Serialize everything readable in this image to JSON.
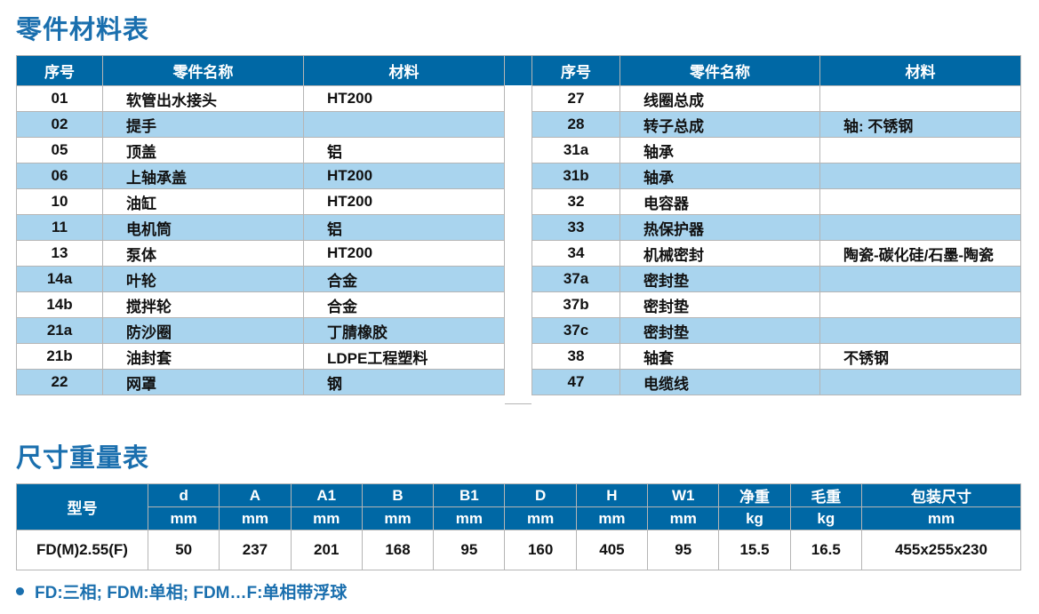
{
  "parts_title": "零件材料表",
  "parts_headers": [
    "序号",
    "零件名称",
    "材料"
  ],
  "parts_left": [
    [
      "01",
      "软管出水接头",
      "HT200"
    ],
    [
      "02",
      "提手",
      ""
    ],
    [
      "05",
      "顶盖",
      "铝"
    ],
    [
      "06",
      "上轴承盖",
      "HT200"
    ],
    [
      "10",
      "油缸",
      "HT200"
    ],
    [
      "11",
      "电机筒",
      "铝"
    ],
    [
      "13",
      "泵体",
      "HT200"
    ],
    [
      "14a",
      "叶轮",
      "合金"
    ],
    [
      "14b",
      "搅拌轮",
      "合金"
    ],
    [
      "21a",
      "防沙圈",
      "丁腈橡胶"
    ],
    [
      "21b",
      "油封套",
      "LDPE工程塑料"
    ],
    [
      "22",
      "网罩",
      "钢"
    ]
  ],
  "parts_right": [
    [
      "27",
      "线圈总成",
      ""
    ],
    [
      "28",
      "转子总成",
      "轴: 不锈钢"
    ],
    [
      "31a",
      "轴承",
      ""
    ],
    [
      "31b",
      "轴承",
      ""
    ],
    [
      "32",
      "电容器",
      ""
    ],
    [
      "33",
      "热保护器",
      ""
    ],
    [
      "34",
      "机械密封",
      "陶瓷-碳化硅/石墨-陶瓷"
    ],
    [
      "37a",
      "密封垫",
      ""
    ],
    [
      "37b",
      "密封垫",
      ""
    ],
    [
      "37c",
      "密封垫",
      ""
    ],
    [
      "38",
      "轴套",
      "不锈钢"
    ],
    [
      "47",
      "电缆线",
      ""
    ]
  ],
  "dims_title": "尺寸重量表",
  "dims_model_header": "型号",
  "dims_headers": [
    "d",
    "A",
    "A1",
    "B",
    "B1",
    "D",
    "H",
    "W1",
    "净重",
    "毛重",
    "包装尺寸"
  ],
  "dims_units": [
    "mm",
    "mm",
    "mm",
    "mm",
    "mm",
    "mm",
    "mm",
    "mm",
    "kg",
    "kg",
    "mm"
  ],
  "dims_rows": [
    [
      "FD(M)2.55(F)",
      "50",
      "237",
      "201",
      "168",
      "95",
      "160",
      "405",
      "95",
      "15.5",
      "16.5",
      "455x255x230"
    ]
  ],
  "note": "FD:三相; FDM:单相; FDM…F:单相带浮球",
  "colors": {
    "header": "#0068a5",
    "alt_row": "#a9d4ee",
    "title": "#1a6fae"
  }
}
